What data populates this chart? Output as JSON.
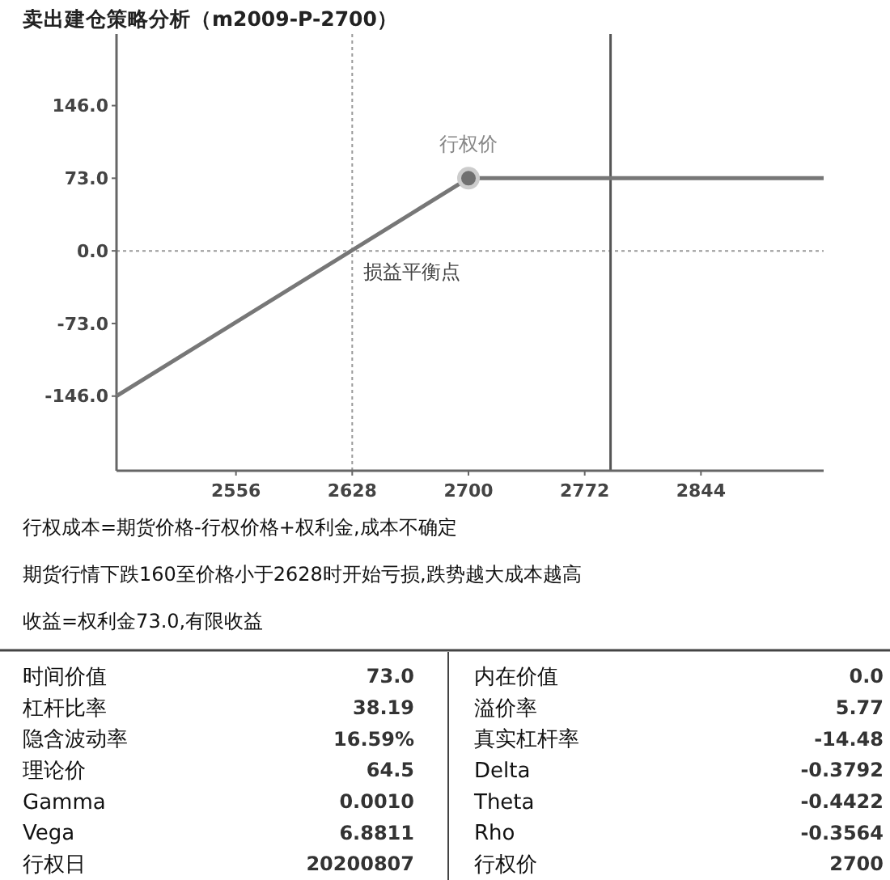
{
  "chart_data": [
    {
      "type": "line",
      "title": "卖出建仓策略分析（m2009-P-2700）",
      "xlim": [
        2482,
        2920
      ],
      "ylim": [
        -221,
        218
      ],
      "xticks": [
        2556,
        2628,
        2700,
        2772,
        2844
      ],
      "yticks": [
        {
          "value": 146,
          "label": "146.0"
        },
        {
          "value": 73,
          "label": "73.0"
        },
        {
          "value": 0,
          "label": "0.0"
        },
        {
          "value": -73,
          "label": "-73.0"
        },
        {
          "value": -146,
          "label": "-146.0"
        }
      ],
      "grid": false,
      "series": [
        {
          "type": "line",
          "color": "#777777",
          "x": [
            2482,
            2700,
            2920
          ],
          "values": [
            -146,
            73,
            73
          ],
          "marker": "none"
        },
        {
          "type": "scatter",
          "color": "#707070",
          "x": [
            2700
          ],
          "values": [
            73
          ],
          "marker": "circle"
        }
      ],
      "ref_lines": [
        {
          "axis": "y",
          "value": 0,
          "color": "#999999",
          "line_style": "dotted"
        },
        {
          "axis": "x",
          "value": 2628,
          "color": "#999999",
          "line_style": "dotted"
        },
        {
          "axis": "x",
          "value": 2788,
          "color": "#555555",
          "line_style": "solid"
        }
      ],
      "annotations": [
        {
          "text": "行权价",
          "x": 2700,
          "y": 73
        },
        {
          "text": "损益平衡点",
          "x": 2628,
          "y": 0
        },
        "行权成本=期货价格-行权价格+权利金,成本不确定",
        "期货行情下跌160至价格小于2628时开始亏损,跌势越大成本越高",
        "收益=权利金73.0,有限收益"
      ]
    },
    {
      "type": "other",
      "annotations": [
        "时间价值",
        "73.0",
        "内在价值",
        "0.0",
        "杠杆比率",
        "38.19",
        "溢价率",
        "5.77",
        "隐含波动率",
        "16.59%",
        "真实杠杆率",
        "-14.48",
        "理论价",
        "64.5",
        "Delta",
        "-0.3792",
        "Gamma",
        "0.0010",
        "Theta",
        "-0.4422",
        "Vega",
        "6.8811",
        "Rho",
        "-0.3564",
        "行权日",
        "20200807",
        "行权价",
        "2700"
      ]
    }
  ]
}
